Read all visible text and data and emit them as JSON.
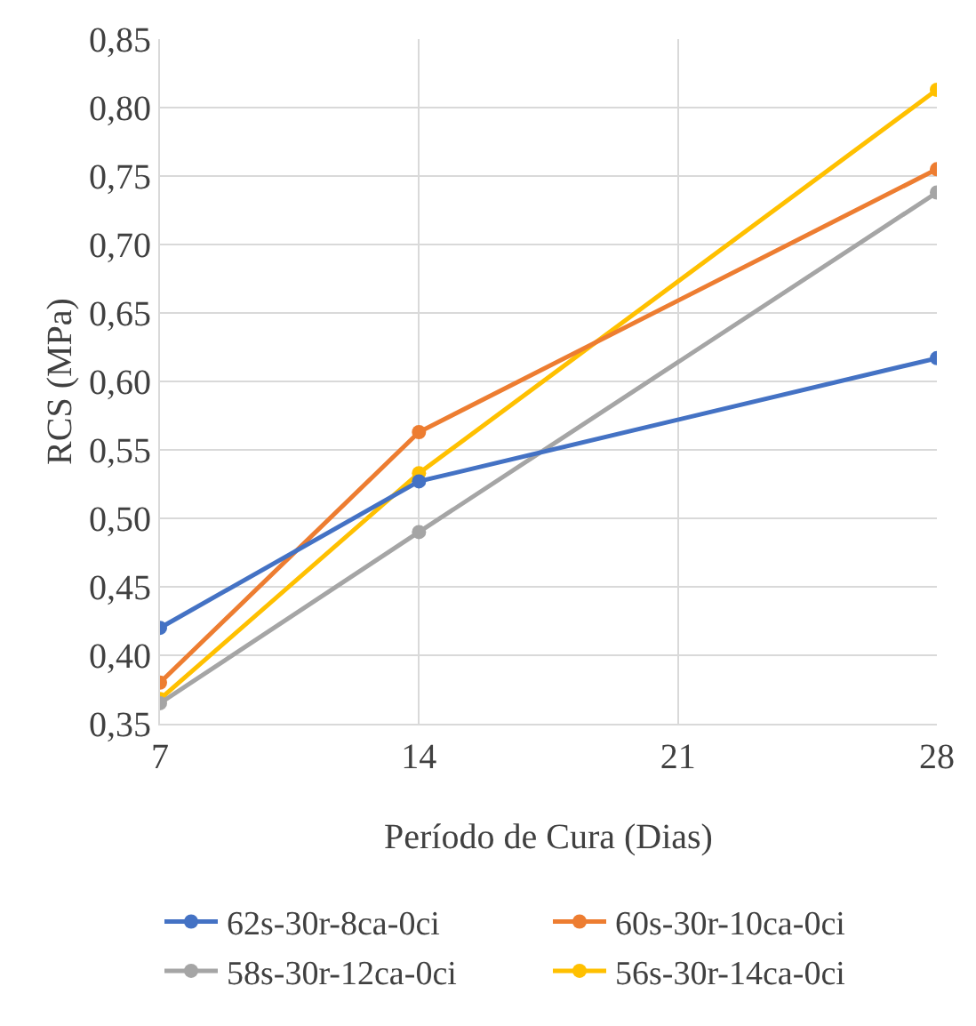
{
  "chart_data": {
    "type": "line",
    "xlabel": "Período de Cura (Dias)",
    "ylabel": "RCS (MPa)",
    "x": [
      7,
      14,
      28
    ],
    "series": [
      {
        "name": "62s-30r-8ca-0ci",
        "color": "#4472c4",
        "values": [
          0.42,
          0.527,
          0.617
        ]
      },
      {
        "name": "60s-30r-10ca-0ci",
        "color": "#ed7d31",
        "values": [
          0.38,
          0.563,
          0.755
        ]
      },
      {
        "name": "58s-30r-12ca-0ci",
        "color": "#a5a5a5",
        "values": [
          0.365,
          0.49,
          0.738
        ]
      },
      {
        "name": "56s-30r-14ca-0ci",
        "color": "#ffc000",
        "values": [
          0.368,
          0.533,
          0.813
        ]
      }
    ],
    "xlim": [
      7,
      28
    ],
    "xticks": [
      7,
      14,
      21,
      28
    ],
    "ylim": [
      0.35,
      0.85
    ],
    "yticks": [
      {
        "value": 0.35,
        "label": "0,35"
      },
      {
        "value": 0.4,
        "label": "0,40"
      },
      {
        "value": 0.45,
        "label": "0,45"
      },
      {
        "value": 0.5,
        "label": "0,50"
      },
      {
        "value": 0.55,
        "label": "0,55"
      },
      {
        "value": 0.6,
        "label": "0,60"
      },
      {
        "value": 0.65,
        "label": "0,65"
      },
      {
        "value": 0.7,
        "label": "0,70"
      },
      {
        "value": 0.75,
        "label": "0,75"
      },
      {
        "value": 0.8,
        "label": "0,80"
      },
      {
        "value": 0.85,
        "label": "0,85"
      }
    ],
    "grid": true,
    "legend": "bottom",
    "marker": "circle",
    "line_style": "solid"
  }
}
